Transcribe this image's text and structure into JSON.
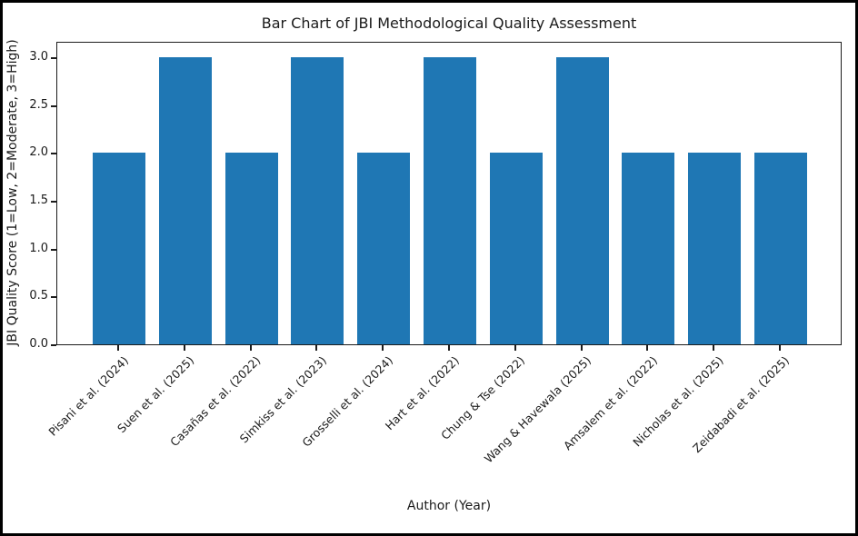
{
  "frame": {
    "border_color": "#000000",
    "background_color": "#ffffff"
  },
  "chart_data": {
    "type": "bar",
    "title": "Bar Chart of JBI Methodological Quality Assessment",
    "xlabel": "Author (Year)",
    "ylabel": "JBI Quality Score (1=Low, 2=Moderate, 3=High)",
    "categories": [
      "Pisani et al. (2024)",
      "Suen et al. (2025)",
      "Casañas et al. (2022)",
      "Simkiss et al. (2023)",
      "Grosselli et al. (2024)",
      "Hart et al. (2022)",
      "Chung & Tse (2022)",
      "Wang & Havewala (2025)",
      "Amsalem et al. (2022)",
      "Nicholas et al. (2025)",
      "Zeidabadi et al. (2025)"
    ],
    "values": [
      2,
      3,
      2,
      3,
      2,
      3,
      2,
      3,
      2,
      2,
      2
    ],
    "yticks": [
      0.0,
      0.5,
      1.0,
      1.5,
      2.0,
      2.5,
      3.0
    ],
    "ytick_labels": [
      "0.0",
      "0.5",
      "1.0",
      "1.5",
      "2.0",
      "2.5",
      "3.0"
    ],
    "ylim": [
      0,
      3.17
    ],
    "xtick_rotation_deg": 45,
    "bar_color": "#1f77b4",
    "axis_color": "#1c1c1c",
    "grid": false,
    "legend": "none"
  }
}
